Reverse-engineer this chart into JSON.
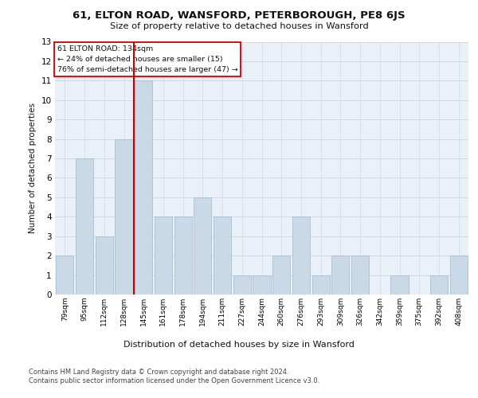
{
  "title": "61, ELTON ROAD, WANSFORD, PETERBOROUGH, PE8 6JS",
  "subtitle": "Size of property relative to detached houses in Wansford",
  "xlabel": "Distribution of detached houses by size in Wansford",
  "ylabel": "Number of detached properties",
  "categories": [
    "79sqm",
    "95sqm",
    "112sqm",
    "128sqm",
    "145sqm",
    "161sqm",
    "178sqm",
    "194sqm",
    "211sqm",
    "227sqm",
    "244sqm",
    "260sqm",
    "276sqm",
    "293sqm",
    "309sqm",
    "326sqm",
    "342sqm",
    "359sqm",
    "375sqm",
    "392sqm",
    "408sqm"
  ],
  "values": [
    2,
    7,
    3,
    8,
    11,
    4,
    4,
    5,
    4,
    1,
    1,
    2,
    4,
    1,
    2,
    2,
    0,
    1,
    0,
    1,
    2
  ],
  "bar_color": "#c9d9e8",
  "bar_edge_color": "#a0b8cc",
  "vline_x": 3.5,
  "vline_color": "#cc0000",
  "annotation_title": "61 ELTON ROAD: 134sqm",
  "annotation_line1": "← 24% of detached houses are smaller (15)",
  "annotation_line2": "76% of semi-detached houses are larger (47) →",
  "annotation_box_color": "#ffffff",
  "annotation_box_edge": "#cc0000",
  "ylim": [
    0,
    13
  ],
  "yticks": [
    0,
    1,
    2,
    3,
    4,
    5,
    6,
    7,
    8,
    9,
    10,
    11,
    12,
    13
  ],
  "grid_color": "#d0d8e8",
  "bg_color": "#eaf0f8",
  "footer1": "Contains HM Land Registry data © Crown copyright and database right 2024.",
  "footer2": "Contains public sector information licensed under the Open Government Licence v3.0."
}
